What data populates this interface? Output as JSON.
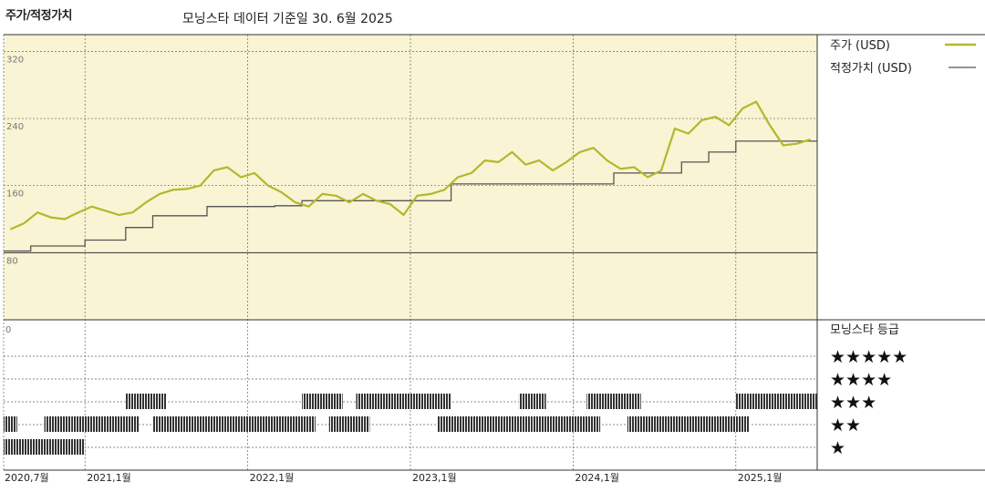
{
  "header": {
    "title": "주가/적정가치",
    "source": "모닝스타 데이터 기준일 30. 6월 2025"
  },
  "colors": {
    "price": "#b5b72c",
    "fair": "#555555",
    "panel_bg": "#f8f4d4",
    "rating_bar": "#333333"
  },
  "legend": {
    "price": "주가 (USD)",
    "fair": "적정가치 (USD)",
    "rating_title": "모닝스타 등급"
  },
  "chart_data": [
    {
      "type": "line",
      "title": "",
      "xlabel": "",
      "ylabel": "",
      "ylim": [
        0,
        340
      ],
      "yticks": [
        "320",
        "240",
        "160",
        "80"
      ],
      "xticks": [
        "2020,7월",
        "2021,1월",
        "2022,1월",
        "2023,1월",
        "2024,1월",
        "2025,1월"
      ],
      "grid": true,
      "legend_position": "right",
      "series": [
        {
          "name": "주가 (USD)",
          "x": [
            "2020-07",
            "2020-08",
            "2020-09",
            "2020-10",
            "2020-11",
            "2020-12",
            "2021-01",
            "2021-02",
            "2021-03",
            "2021-04",
            "2021-05",
            "2021-06",
            "2021-07",
            "2021-08",
            "2021-09",
            "2021-10",
            "2021-11",
            "2021-12",
            "2022-01",
            "2022-02",
            "2022-03",
            "2022-04",
            "2022-05",
            "2022-06",
            "2022-07",
            "2022-08",
            "2022-09",
            "2022-10",
            "2022-11",
            "2022-12",
            "2023-01",
            "2023-02",
            "2023-03",
            "2023-04",
            "2023-05",
            "2023-06",
            "2023-07",
            "2023-08",
            "2023-09",
            "2023-10",
            "2023-11",
            "2023-12",
            "2024-01",
            "2024-02",
            "2024-03",
            "2024-04",
            "2024-05",
            "2024-06",
            "2024-07",
            "2024-08",
            "2024-09",
            "2024-10",
            "2024-11",
            "2024-12",
            "2025-01",
            "2025-02",
            "2025-03",
            "2025-04",
            "2025-05",
            "2025-06"
          ],
          "values": [
            108,
            115,
            128,
            122,
            120,
            128,
            135,
            130,
            125,
            128,
            140,
            150,
            155,
            156,
            160,
            178,
            182,
            170,
            175,
            160,
            152,
            140,
            135,
            150,
            148,
            140,
            150,
            142,
            138,
            125,
            148,
            150,
            155,
            170,
            175,
            190,
            188,
            200,
            185,
            190,
            178,
            188,
            200,
            205,
            190,
            180,
            182,
            170,
            178,
            228,
            222,
            238,
            242,
            232,
            252,
            260,
            232,
            208,
            210,
            215
          ]
        },
        {
          "name": "적정가치 (USD)",
          "x": [
            "2020-07",
            "2020-09",
            "2020-11",
            "2021-01",
            "2021-04",
            "2021-06",
            "2021-10",
            "2022-01",
            "2022-03",
            "2022-04",
            "2022-05",
            "2023-01",
            "2023-04",
            "2024-02",
            "2024-04",
            "2024-07",
            "2024-09",
            "2024-11",
            "2025-01",
            "2025-06"
          ],
          "values": [
            82,
            88,
            88,
            95,
            110,
            124,
            135,
            135,
            136,
            136,
            142,
            142,
            162,
            162,
            175,
            175,
            188,
            200,
            213,
            213
          ]
        }
      ]
    },
    {
      "type": "table",
      "title": "모닝스타 등급",
      "rating_levels": [
        "★★★★★",
        "★★★★",
        "★★★",
        "★★",
        "★"
      ],
      "x_range": [
        "2020-07",
        "2025-06"
      ],
      "periods": [
        {
          "rating": 2,
          "from": "2020-07",
          "to": "2020-07"
        },
        {
          "rating": 1,
          "from": "2020-07",
          "to": "2020-10"
        },
        {
          "rating": 2,
          "from": "2020-10",
          "to": "2020-11"
        },
        {
          "rating": 1,
          "from": "2020-11",
          "to": "2020-12"
        },
        {
          "rating": 2,
          "from": "2020-12",
          "to": "2021-04"
        },
        {
          "rating": 3,
          "from": "2021-04",
          "to": "2021-06"
        },
        {
          "rating": 2,
          "from": "2021-06",
          "to": "2022-05"
        },
        {
          "rating": 3,
          "from": "2022-05",
          "to": "2022-07"
        },
        {
          "rating": 2,
          "from": "2022-07",
          "to": "2022-09"
        },
        {
          "rating": 3,
          "from": "2022-09",
          "to": "2023-03"
        },
        {
          "rating": 2,
          "from": "2023-03",
          "to": "2023-09"
        },
        {
          "rating": 3,
          "from": "2023-09",
          "to": "2023-10"
        },
        {
          "rating": 2,
          "from": "2023-10",
          "to": "2024-02"
        },
        {
          "rating": 3,
          "from": "2024-02",
          "to": "2024-05"
        },
        {
          "rating": 2,
          "from": "2024-05",
          "to": "2025-01"
        },
        {
          "rating": 3,
          "from": "2025-01",
          "to": "2025-06"
        }
      ]
    }
  ]
}
